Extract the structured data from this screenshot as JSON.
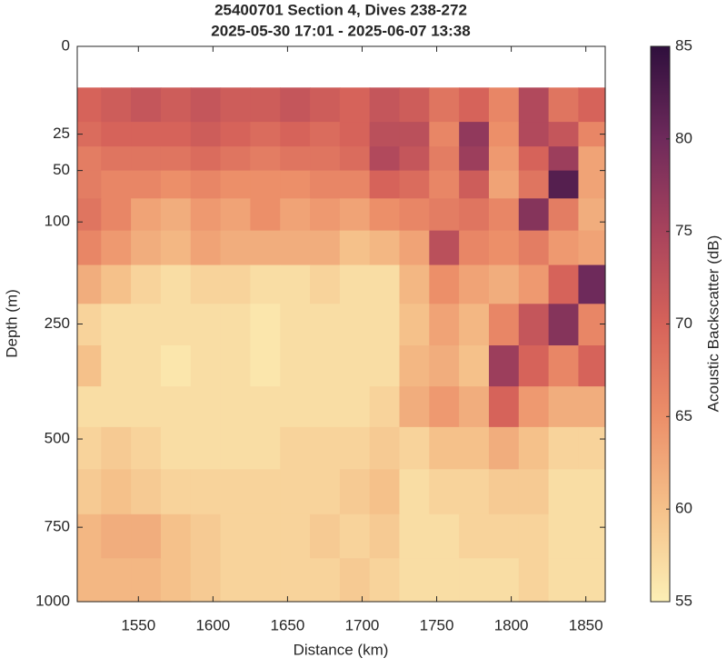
{
  "chart_data": {
    "type": "contour",
    "title": "25400701 Section 4, Dives 238-272",
    "subtitle": "2025-05-30 17:01 - 2025-06-07 13:38",
    "x_label": "Distance (km)",
    "y_label": "Depth (m)",
    "colorbar_label": "Acoustic Backscatter (dB)",
    "xlim": [
      1509,
      1863
    ],
    "xticks": [
      1550,
      1600,
      1650,
      1700,
      1750,
      1800,
      1850
    ],
    "ylim": [
      0,
      1000
    ],
    "yticks": [
      0,
      25,
      50,
      100,
      250,
      500,
      750,
      1000
    ],
    "y_scale": "sqrt",
    "y_reversed": true,
    "clim": [
      55,
      85
    ],
    "cticks": [
      55,
      60,
      65,
      70,
      75,
      80,
      85
    ],
    "colormap": [
      "#fcefb5",
      "#f5c18a",
      "#ec8f69",
      "#d6635a",
      "#a8435c",
      "#6e2a5b",
      "#2f0f3d"
    ],
    "x": [
      1515,
      1535,
      1555,
      1575,
      1595,
      1615,
      1635,
      1655,
      1675,
      1695,
      1715,
      1735,
      1755,
      1775,
      1795,
      1815,
      1835,
      1855
    ],
    "y": [
      12,
      25,
      40,
      60,
      90,
      130,
      180,
      250,
      330,
      420,
      520,
      640,
      780,
      920
    ],
    "values": [
      [
        70,
        71,
        72,
        71,
        72,
        71,
        71,
        72,
        71,
        70,
        72,
        71,
        68,
        70,
        66,
        74,
        68,
        70
      ],
      [
        69,
        70,
        70,
        70,
        71,
        70,
        69,
        70,
        69,
        70,
        73,
        73,
        66,
        77,
        65,
        74,
        72,
        66
      ],
      [
        67,
        68,
        68,
        68,
        69,
        68,
        67,
        68,
        68,
        69,
        74,
        72,
        67,
        76,
        64,
        70,
        76,
        63
      ],
      [
        67,
        66,
        66,
        65,
        66,
        65,
        65,
        65,
        66,
        66,
        70,
        69,
        66,
        71,
        63,
        68,
        82,
        63
      ],
      [
        68,
        66,
        63,
        62,
        64,
        63,
        65,
        63,
        64,
        63,
        65,
        66,
        67,
        68,
        66,
        78,
        67,
        62
      ],
      [
        66,
        64,
        62,
        61,
        63,
        62,
        62,
        62,
        62,
        60,
        61,
        63,
        73,
        66,
        65,
        67,
        64,
        63
      ],
      [
        62,
        60,
        58,
        57,
        58,
        58,
        57,
        57,
        58,
        57,
        57,
        61,
        65,
        63,
        62,
        64,
        70,
        80
      ],
      [
        58,
        57,
        57,
        57,
        57,
        57,
        56,
        57,
        57,
        57,
        57,
        60,
        63,
        61,
        66,
        72,
        78,
        66
      ],
      [
        60,
        57,
        57,
        56,
        57,
        57,
        56,
        57,
        57,
        57,
        57,
        61,
        62,
        60,
        76,
        70,
        66,
        70
      ],
      [
        57,
        57,
        57,
        57,
        57,
        57,
        57,
        57,
        57,
        57,
        58,
        62,
        64,
        62,
        70,
        64,
        62,
        62
      ],
      [
        58,
        59,
        58,
        57,
        57,
        57,
        57,
        58,
        58,
        58,
        59,
        58,
        60,
        60,
        62,
        60,
        58,
        58
      ],
      [
        59,
        60,
        59,
        58,
        58,
        58,
        58,
        58,
        58,
        59,
        60,
        57,
        58,
        58,
        59,
        59,
        57,
        57
      ],
      [
        61,
        62,
        62,
        60,
        59,
        58,
        58,
        58,
        59,
        58,
        59,
        57,
        57,
        58,
        58,
        58,
        57,
        57
      ],
      [
        61,
        61,
        61,
        60,
        59,
        58,
        58,
        58,
        58,
        59,
        58,
        57,
        57,
        57,
        57,
        58,
        57,
        57
      ]
    ]
  }
}
